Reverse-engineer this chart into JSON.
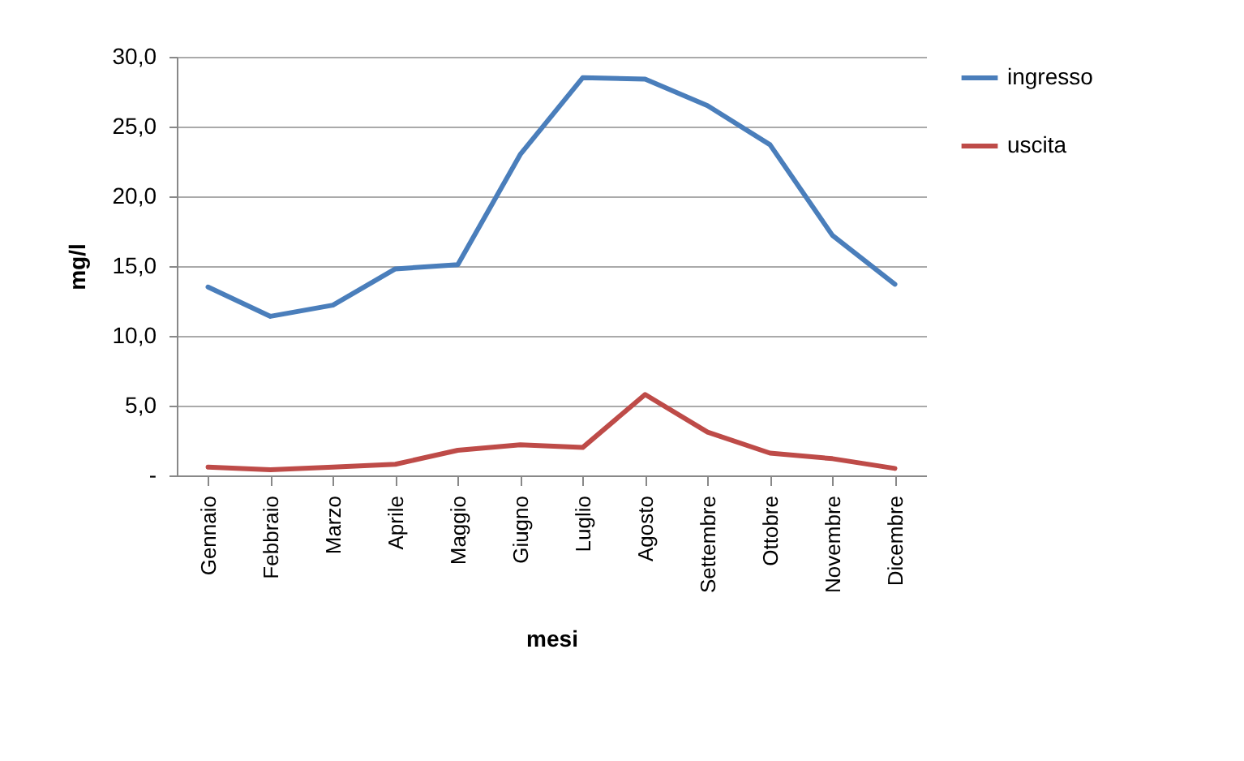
{
  "chart_data": {
    "type": "line",
    "xlabel": "mesi",
    "ylabel": "mg/l",
    "categories": [
      "Gennaio",
      "Febbraio",
      "Marzo",
      "Aprile",
      "Maggio",
      "Giugno",
      "Luglio",
      "Agosto",
      "Settembre",
      "Ottobre",
      "Novembre",
      "Dicembre"
    ],
    "series": [
      {
        "name": "ingresso",
        "color": "#4a7ebb",
        "values": [
          13.5,
          11.4,
          12.2,
          14.8,
          15.1,
          23.0,
          28.5,
          28.4,
          26.5,
          23.7,
          17.2,
          13.7
        ]
      },
      {
        "name": "uscita",
        "color": "#be4b48",
        "values": [
          0.6,
          0.4,
          0.6,
          0.8,
          1.8,
          2.2,
          2.0,
          5.8,
          3.1,
          1.6,
          1.2,
          0.5
        ]
      }
    ],
    "ylim": [
      0,
      30
    ],
    "yticks": [
      {
        "value": 0,
        "label": "-"
      },
      {
        "value": 5,
        "label": "5,0"
      },
      {
        "value": 10,
        "label": "10,0"
      },
      {
        "value": 15,
        "label": "15,0"
      },
      {
        "value": 20,
        "label": "20,0"
      },
      {
        "value": 25,
        "label": "25,0"
      },
      {
        "value": 30,
        "label": "30,0"
      }
    ],
    "grid": "y",
    "legend": "right",
    "marker": "none",
    "line_style": "solid"
  }
}
